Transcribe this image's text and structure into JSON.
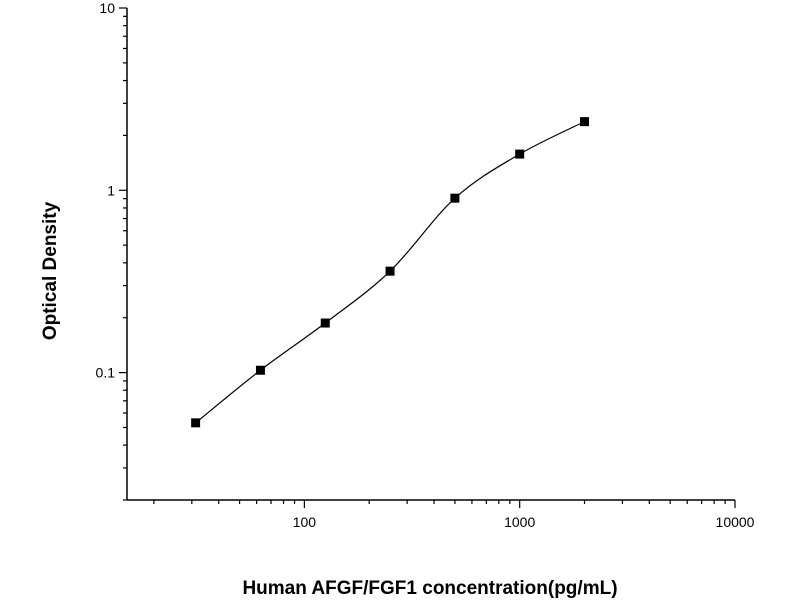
{
  "chart_data": {
    "type": "scatter",
    "title": "",
    "xlabel": "Human AFGF/FGF1 concentration(pg/mL)",
    "ylabel": "Optical Density",
    "x_scale": "log",
    "y_scale": "log",
    "xlim": [
      15,
      10000
    ],
    "ylim": [
      0.02,
      10
    ],
    "x_ticks": [
      {
        "value": 100,
        "label": "100"
      },
      {
        "value": 1000,
        "label": "1000"
      },
      {
        "value": 10000,
        "label": "10000"
      }
    ],
    "y_ticks": [
      {
        "value": 0.1,
        "label": "0.1"
      },
      {
        "value": 1,
        "label": "1"
      },
      {
        "value": 10,
        "label": "10"
      }
    ],
    "grid": false,
    "legend": "none",
    "marker_color": "#000000",
    "line_color": "#000000",
    "series": [
      {
        "x": [
          31.25,
          62.5,
          125,
          250,
          500,
          1000,
          2000
        ],
        "y": [
          0.053,
          0.103,
          0.187,
          0.36,
          0.905,
          1.58,
          2.38
        ],
        "marker": "square",
        "fit_line": true
      }
    ]
  }
}
